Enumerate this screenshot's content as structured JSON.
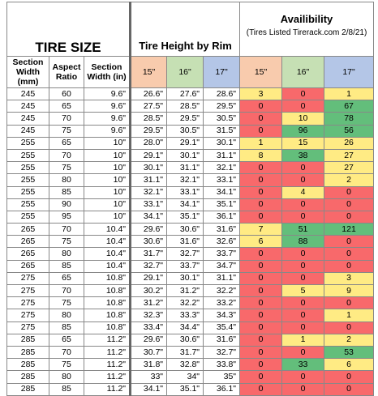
{
  "header": {
    "tire_size": "TIRE SIZE",
    "tire_height": "Tire Height by Rim",
    "availability": "Availibility",
    "availability_note": "(Tires Listed Tirerack.com 2/8/21)"
  },
  "columns": [
    "Section Width (mm)",
    "Aspect Ratio",
    "Section Width (in)",
    "15\"",
    "16\"",
    "17\"",
    "15\"",
    "16\"",
    "17\""
  ],
  "rows": [
    [
      "245",
      "60",
      "9.6\"",
      "26.6\"",
      "27.6\"",
      "28.6\"",
      3,
      0,
      1
    ],
    [
      "245",
      "65",
      "9.6\"",
      "27.5\"",
      "28.5\"",
      "29.5\"",
      0,
      0,
      67
    ],
    [
      "245",
      "70",
      "9.6\"",
      "28.5\"",
      "29.5\"",
      "30.5\"",
      0,
      10,
      78
    ],
    [
      "245",
      "75",
      "9.6\"",
      "29.5\"",
      "30.5\"",
      "31.5\"",
      0,
      96,
      56
    ],
    [
      "255",
      "65",
      "10\"",
      "28.0\"",
      "29.1\"",
      "30.1\"",
      1,
      15,
      26
    ],
    [
      "255",
      "70",
      "10\"",
      "29.1\"",
      "30.1\"",
      "31.1\"",
      8,
      38,
      27
    ],
    [
      "255",
      "75",
      "10\"",
      "30.1\"",
      "31.1\"",
      "32.1\"",
      0,
      0,
      27
    ],
    [
      "255",
      "80",
      "10\"",
      "31.1\"",
      "32.1\"",
      "33.1\"",
      0,
      0,
      2
    ],
    [
      "255",
      "85",
      "10\"",
      "32.1\"",
      "33.1\"",
      "34.1\"",
      0,
      4,
      0
    ],
    [
      "255",
      "90",
      "10\"",
      "33.1\"",
      "34.1\"",
      "35.1\"",
      0,
      0,
      0
    ],
    [
      "255",
      "95",
      "10\"",
      "34.1\"",
      "35.1\"",
      "36.1\"",
      0,
      0,
      0
    ],
    [
      "265",
      "70",
      "10.4\"",
      "29.6\"",
      "30.6\"",
      "31.6\"",
      7,
      51,
      121
    ],
    [
      "265",
      "75",
      "10.4\"",
      "30.6\"",
      "31.6\"",
      "32.6\"",
      6,
      88,
      0
    ],
    [
      "265",
      "80",
      "10.4\"",
      "31.7\"",
      "32.7\"",
      "33.7\"",
      0,
      0,
      0
    ],
    [
      "265",
      "85",
      "10.4\"",
      "32.7\"",
      "33.7\"",
      "34.7\"",
      0,
      0,
      0
    ],
    [
      "275",
      "65",
      "10.8\"",
      "29.1\"",
      "30.1\"",
      "31.1\"",
      0,
      0,
      3
    ],
    [
      "275",
      "70",
      "10.8\"",
      "30.2\"",
      "31.2\"",
      "32.2\"",
      0,
      5,
      9
    ],
    [
      "275",
      "75",
      "10.8\"",
      "31.2\"",
      "32.2\"",
      "33.2\"",
      0,
      0,
      0
    ],
    [
      "275",
      "80",
      "10.8\"",
      "32.3\"",
      "33.3\"",
      "34.3\"",
      0,
      0,
      1
    ],
    [
      "275",
      "85",
      "10.8\"",
      "33.4\"",
      "34.4\"",
      "35.4\"",
      0,
      0,
      0
    ],
    [
      "285",
      "65",
      "11.2\"",
      "29.6\"",
      "30.6\"",
      "31.6\"",
      0,
      1,
      2
    ],
    [
      "285",
      "70",
      "11.2\"",
      "30.7\"",
      "31.7\"",
      "32.7\"",
      0,
      0,
      53
    ],
    [
      "285",
      "75",
      "11.2\"",
      "31.8\"",
      "32.8\"",
      "33.8\"",
      0,
      33,
      6
    ],
    [
      "285",
      "80",
      "11.2\"",
      "33\"",
      "34\"",
      "35\"",
      0,
      0,
      0
    ],
    [
      "285",
      "85",
      "11.2\"",
      "34.1\"",
      "35.1\"",
      "36.1\"",
      0,
      0,
      0
    ]
  ]
}
